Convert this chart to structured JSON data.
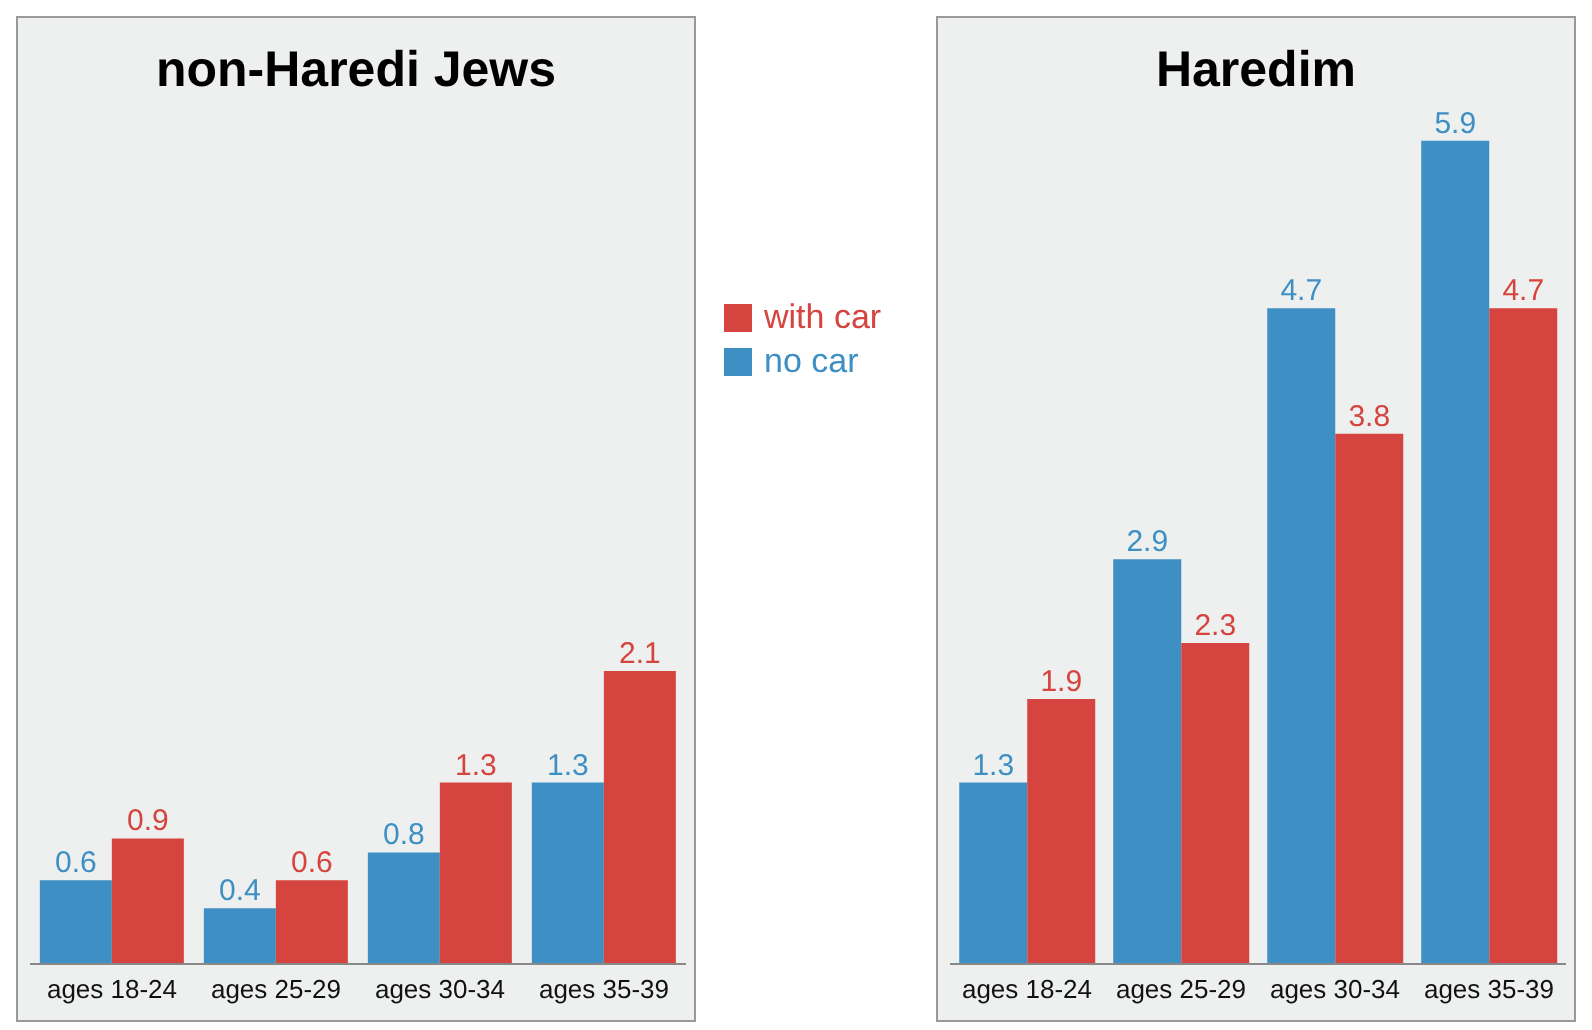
{
  "chart_data": [
    {
      "type": "bar",
      "title": "non-Haredi Jews",
      "categories": [
        "ages 18-24",
        "ages 25-29",
        "ages 30-34",
        "ages 35-39"
      ],
      "series": [
        {
          "name": "no car",
          "color": "#3d8fc4",
          "values": [
            0.6,
            0.4,
            0.8,
            1.3
          ]
        },
        {
          "name": "with car",
          "color": "#d5443e",
          "values": [
            0.9,
            0.6,
            1.3,
            2.1
          ]
        }
      ],
      "tick_labels": "x",
      "data_labels": true,
      "legend": "right",
      "grid": false
    },
    {
      "type": "bar",
      "title": "Haredim",
      "categories": [
        "ages 18-24",
        "ages 25-29",
        "ages 30-34",
        "ages 35-39"
      ],
      "series": [
        {
          "color": "#3d8fc4",
          "values": [
            1.3,
            2.9,
            4.7,
            5.9
          ]
        },
        {
          "color": "#d5443e",
          "values": [
            1.9,
            2.3,
            3.8,
            4.7
          ]
        }
      ],
      "tick_labels": "x",
      "data_labels": true,
      "legend": false,
      "grid": false
    }
  ]
}
